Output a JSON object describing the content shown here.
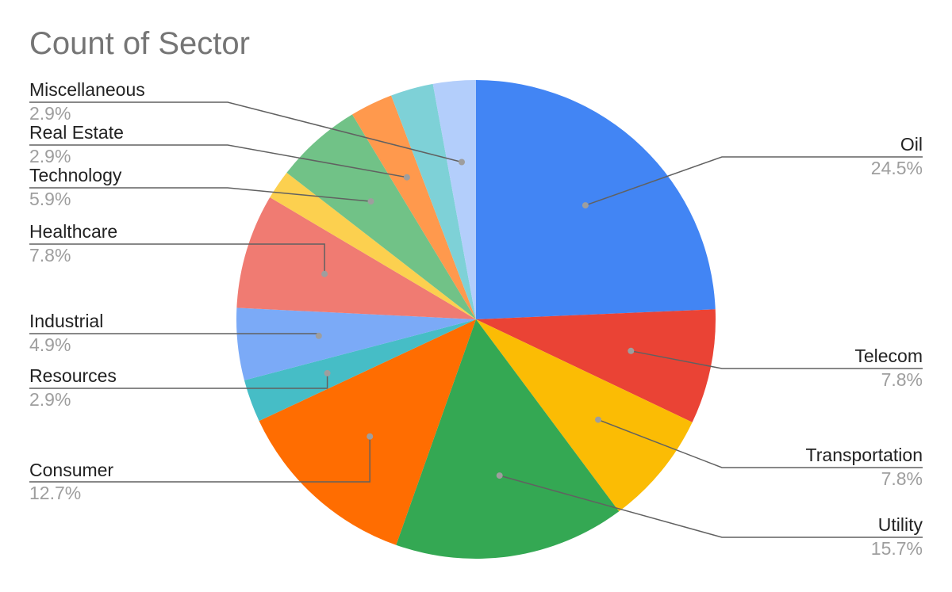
{
  "chart_data": {
    "type": "pie",
    "title": "Count of Sector",
    "slices": [
      {
        "label": "Oil",
        "value": 24.5,
        "pct_label": "24.5%",
        "color": "#4285f4"
      },
      {
        "label": "Telecom",
        "value": 7.8,
        "pct_label": "7.8%",
        "color": "#ea4335"
      },
      {
        "label": "Transportation",
        "value": 7.8,
        "pct_label": "7.8%",
        "color": "#fbbc04"
      },
      {
        "label": "Utility",
        "value": 15.7,
        "pct_label": "15.7%",
        "color": "#34a853"
      },
      {
        "label": "Consumer",
        "value": 12.7,
        "pct_label": "12.7%",
        "color": "#ff6d01"
      },
      {
        "label": "Resources",
        "value": 2.9,
        "pct_label": "2.9%",
        "color": "#46bdc6"
      },
      {
        "label": "Industrial",
        "value": 4.9,
        "pct_label": "4.9%",
        "color": "#7baaf7"
      },
      {
        "label": "Healthcare",
        "value": 7.8,
        "pct_label": "7.8%",
        "color": "#f07b72"
      },
      {
        "label": "Other (unlabeled)",
        "value": 2.0,
        "pct_label": "",
        "color": "#fcd04f"
      },
      {
        "label": "Technology",
        "value": 5.9,
        "pct_label": "5.9%",
        "color": "#71c287"
      },
      {
        "label": "Real Estate",
        "value": 2.9,
        "pct_label": "2.9%",
        "color": "#ff994d"
      },
      {
        "label": "Other (unlabeled 2)",
        "value": 2.9,
        "pct_label": "",
        "color": "#7ed1d7"
      },
      {
        "label": "Miscellaneous",
        "value": 2.9,
        "pct_label": "2.9%",
        "color": "#b3cefb"
      }
    ],
    "legend": "leader-labels"
  }
}
